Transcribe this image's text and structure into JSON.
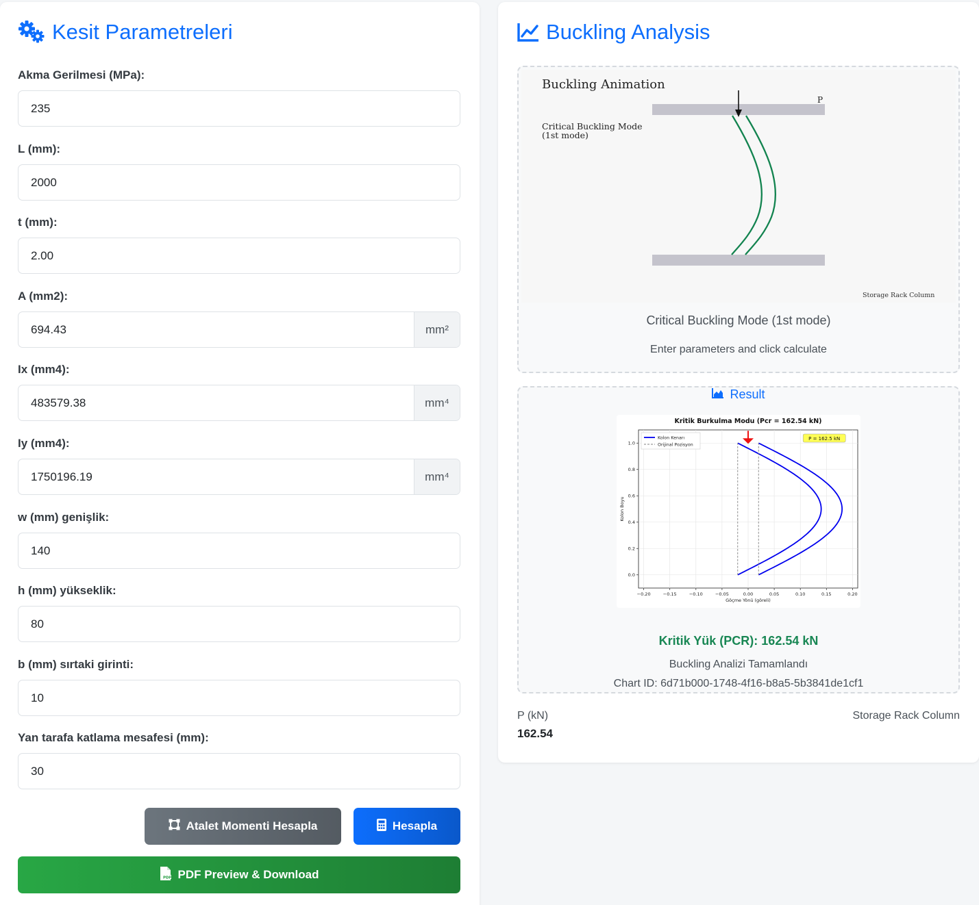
{
  "left": {
    "title": "Kesit Parametreleri",
    "icon": "gears-icon",
    "fields": [
      {
        "label": "Akma Gerilmesi (MPa):",
        "value": "235",
        "unit": ""
      },
      {
        "label": "L (mm):",
        "value": "2000",
        "unit": ""
      },
      {
        "label": "t (mm):",
        "value": "2.00",
        "unit": ""
      },
      {
        "label": "A (mm2):",
        "value": "694.43",
        "unit": "mm²"
      },
      {
        "label": "Ix (mm4):",
        "value": "483579.38",
        "unit": "mm⁴"
      },
      {
        "label": "Iy (mm4):",
        "value": "1750196.19",
        "unit": "mm⁴"
      },
      {
        "label": "w (mm) genişlik:",
        "value": "140",
        "unit": ""
      },
      {
        "label": "h (mm) yükseklik:",
        "value": "80",
        "unit": ""
      },
      {
        "label": "b (mm) sırtaki girinti:",
        "value": "10",
        "unit": ""
      },
      {
        "label": "Yan tarafa katlama mesafesi (mm):",
        "value": "30",
        "unit": ""
      }
    ],
    "buttons": {
      "inertia": "Atalet Momenti Hesapla",
      "calculate": "Hesapla",
      "pdf": "PDF Preview & Download"
    }
  },
  "right": {
    "title": "Buckling Analysis",
    "icon": "chart-line-icon",
    "animation": {
      "figure_title": "Buckling Animation",
      "load_label": "P",
      "mode_label_1": "Critical Buckling Mode",
      "mode_label_2": "(1st mode)",
      "footer_label": "Storage Rack Column",
      "caption": "Critical Buckling Mode (1st mode)",
      "hint": "Enter parameters and click calculate"
    },
    "result": {
      "header": "Result",
      "pcr_text": "Kritik Yük (PCR): 162.54 kN",
      "status": "Buckling Analizi Tamamlandı",
      "chart_id": "Chart ID: 6d71b000-1748-4f16-b8a5-5b3841de1cf1"
    },
    "footer": {
      "p_label": "P (kN)",
      "p_value": "162.54",
      "column_type": "Storage Rack Column"
    }
  },
  "chart_data": {
    "type": "line",
    "title": "Kritik Burkulma Modu (Pcr = 162.54 kN)",
    "xlabel": "Göçme Yönü (göreli)",
    "ylabel": "Kolon Boyu",
    "xlim": [
      -0.2,
      0.2
    ],
    "ylim": [
      0.0,
      1.0
    ],
    "xticks": [
      "−0.20",
      "−0.15",
      "−0.10",
      "−0.05",
      "0.00",
      "0.05",
      "0.10",
      "0.15",
      "0.20"
    ],
    "yticks": [
      "0.0",
      "0.2",
      "0.4",
      "0.6",
      "0.8",
      "1.0"
    ],
    "grid": true,
    "legend_position": "top-left",
    "annotation": "P = 162.5 kN",
    "series": [
      {
        "name": "Kolon Kenarı",
        "style": "solid",
        "color": "#0000ee",
        "offset": -0.02,
        "amplitude": 0.16
      },
      {
        "name": "",
        "style": "solid",
        "color": "#0000ee",
        "offset": 0.02,
        "amplitude": 0.16
      },
      {
        "name": "Orijinal Pozisyon",
        "style": "dashed",
        "color": "#808080",
        "offset": -0.02,
        "amplitude": 0
      },
      {
        "name": "",
        "style": "dashed",
        "color": "#808080",
        "offset": 0.02,
        "amplitude": 0
      }
    ]
  }
}
